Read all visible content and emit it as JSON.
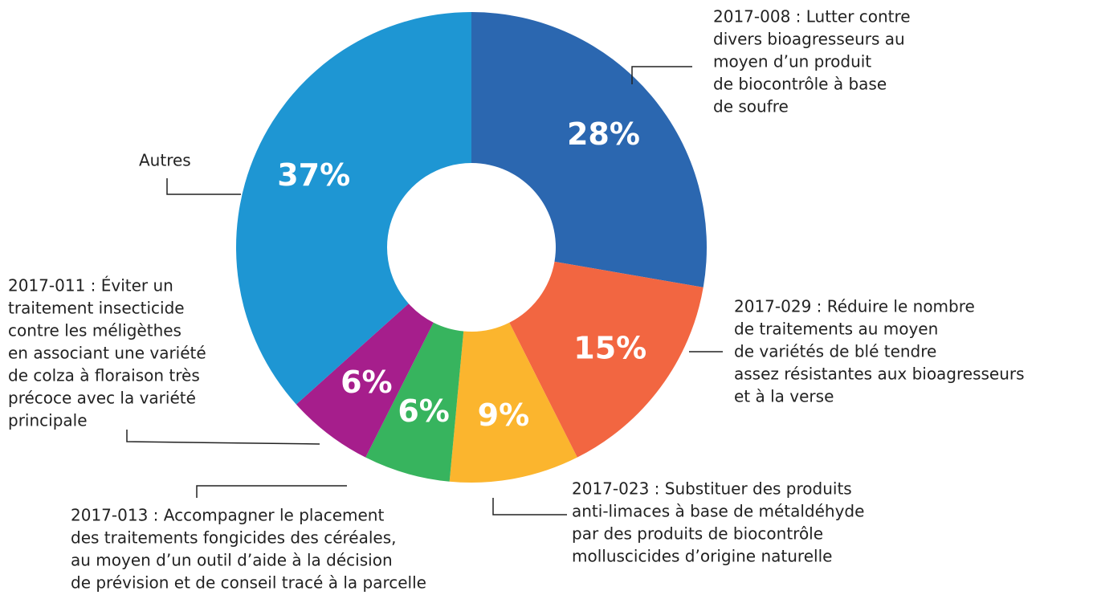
{
  "chart_data": {
    "type": "pie",
    "categories": [
      [
        "2017-008 : Lutter contre",
        "divers bioagresseurs au",
        "moyen d’un produit",
        "de biocontrôle à base",
        "de soufre"
      ],
      [
        "2017-029 : Réduire le nombre",
        "de traitements au moyen",
        "de variétés de blé tendre",
        "assez résistantes aux bioagresseurs",
        "et à la verse"
      ],
      [
        "2017-023 : Substituer des produits",
        "anti-limaces à base de métaldéhyde",
        "par des produits de biocontrôle",
        "molluscicides d’origine naturelle"
      ],
      [
        "2017-013 : Accompagner le placement",
        "des traitements fongicides des céréales,",
        "au moyen d’un outil d’aide à la décision",
        "de prévision et de conseil tracé à la parcelle"
      ],
      [
        "2017-011 : Éviter un",
        "traitement insecticide",
        "contre les méligèthes",
        "en associant une variété",
        "de colza à floraison très",
        "précoce avec la variété",
        "principale"
      ],
      [
        "Autres"
      ]
    ],
    "values": [
      28,
      15,
      9,
      6,
      6,
      37
    ],
    "value_labels": [
      "28%",
      "15%",
      "9%",
      "6%",
      "6%",
      "37%"
    ],
    "colors": [
      "#2b67b0",
      "#f26641",
      "#fbb52e",
      "#37b45e",
      "#a61e8c",
      "#1e96d3"
    ],
    "donut": true
  }
}
